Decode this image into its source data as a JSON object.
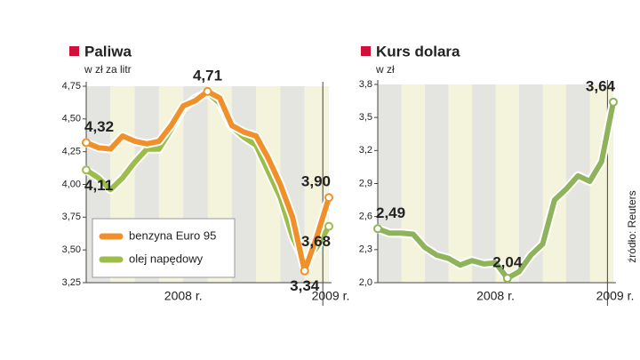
{
  "chart_data": [
    {
      "type": "line",
      "title": "Paliwa",
      "subtitle": "w zł za litr",
      "categories": [
        null,
        null,
        null,
        null,
        null,
        null,
        null,
        null,
        "2008 r.",
        null,
        null,
        null,
        null,
        null,
        null,
        null,
        null,
        null,
        null,
        null,
        "2009 r."
      ],
      "series": [
        {
          "name": "benzyna Euro 95",
          "color": "#f0902a",
          "values": [
            4.32,
            4.28,
            4.27,
            4.37,
            4.33,
            4.31,
            4.33,
            4.45,
            4.6,
            4.64,
            4.71,
            4.66,
            4.45,
            4.4,
            4.37,
            4.2,
            4.0,
            3.75,
            3.34,
            3.6,
            3.9
          ],
          "value_labels": [
            "4,32",
            null,
            null,
            null,
            null,
            null,
            null,
            null,
            null,
            null,
            "4,71",
            null,
            null,
            null,
            null,
            null,
            null,
            null,
            "3,34",
            null,
            "3,90"
          ]
        },
        {
          "name": "olej napędowy",
          "color": "#9dbd4a",
          "values": [
            4.11,
            4.05,
            3.96,
            4.05,
            4.17,
            4.27,
            4.27,
            4.42,
            4.58,
            4.66,
            4.7,
            4.62,
            4.44,
            4.36,
            4.3,
            4.1,
            3.9,
            3.6,
            3.4,
            3.52,
            3.68
          ],
          "value_labels": [
            "4,11",
            null,
            null,
            null,
            null,
            null,
            null,
            null,
            null,
            null,
            null,
            null,
            null,
            null,
            null,
            null,
            null,
            null,
            null,
            null,
            "3,68"
          ]
        }
      ],
      "ylim": [
        3.25,
        4.75
      ],
      "yticks": [
        {
          "value": 3.25,
          "label": "3,25"
        },
        {
          "value": 3.5,
          "label": "3,50"
        },
        {
          "value": 3.75,
          "label": "3,75"
        },
        {
          "value": 4.0,
          "label": "4,00"
        },
        {
          "value": 4.25,
          "label": "4,25"
        },
        {
          "value": 4.5,
          "label": "4,50"
        },
        {
          "value": 4.75,
          "label": "4,75"
        }
      ],
      "legend": "lower-left"
    },
    {
      "type": "line",
      "title": "Kurs dolara",
      "subtitle": "w zł",
      "categories": [
        null,
        null,
        null,
        null,
        null,
        null,
        null,
        null,
        null,
        null,
        "2008 r.",
        null,
        null,
        null,
        null,
        null,
        null,
        null,
        null,
        null,
        "2009 r."
      ],
      "color": "#8fb35a",
      "values": [
        2.49,
        2.45,
        2.45,
        2.44,
        2.32,
        2.25,
        2.22,
        2.16,
        2.2,
        2.17,
        2.18,
        2.04,
        2.1,
        2.25,
        2.35,
        2.75,
        2.85,
        2.97,
        2.92,
        3.1,
        3.64
      ],
      "value_labels": [
        "2,49",
        null,
        null,
        null,
        null,
        null,
        null,
        null,
        null,
        null,
        null,
        "2,04",
        null,
        null,
        null,
        null,
        null,
        null,
        null,
        null,
        "3,64"
      ],
      "ylim": [
        2.0,
        3.8
      ],
      "yticks": [
        {
          "value": 2.0,
          "label": "2,0"
        },
        {
          "value": 2.3,
          "label": "2,3"
        },
        {
          "value": 2.6,
          "label": "2,6"
        },
        {
          "value": 2.9,
          "label": "2,9"
        },
        {
          "value": 3.2,
          "label": "3,2"
        },
        {
          "value": 3.5,
          "label": "3,5"
        },
        {
          "value": 3.8,
          "label": "3,8"
        }
      ]
    }
  ],
  "source": "źródło: Reuters"
}
